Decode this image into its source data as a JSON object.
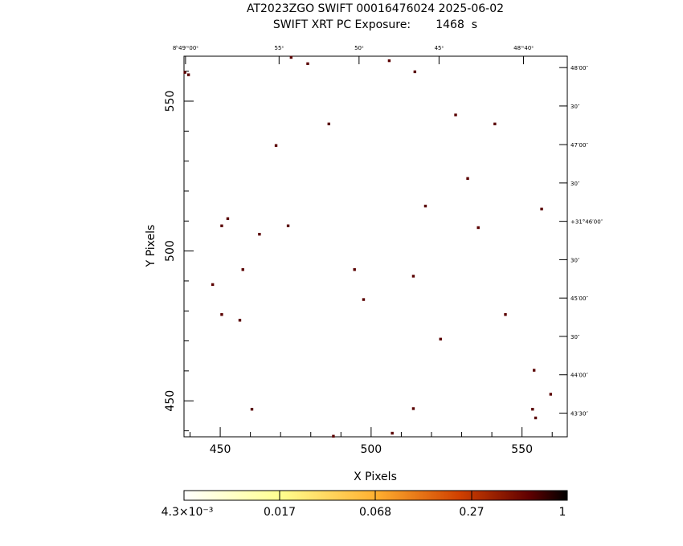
{
  "header": {
    "line1": "AT2023ZGO SWIFT 00016476024 2025-06-02",
    "line2": "SWIFT XRT PC Exposure:       1468  s"
  },
  "chart_data": {
    "type": "scatter",
    "title": "AT2023ZGO SWIFT 00016476024 2025-06-02",
    "subtitle": "SWIFT XRT PC Exposure:       1468  s",
    "xlabel": "X Pixels",
    "ylabel": "Y Pixels",
    "xlim": [
      438,
      565
    ],
    "ylim": [
      438,
      565
    ],
    "x_ticks": [
      450,
      500,
      550
    ],
    "y_ticks": [
      450,
      500,
      550
    ],
    "ra_ticks": [
      {
        "label": "8ʰ49ᵐ00ˢ",
        "x": 438.5
      },
      {
        "label": "55ˢ",
        "x": 469.5
      },
      {
        "label": "50ˢ",
        "x": 496.0
      },
      {
        "label": "45ˢ",
        "x": 522.5
      },
      {
        "label": "48ᵐ40ˢ",
        "x": 550.5
      }
    ],
    "dec_ticks": [
      {
        "label": "48′00″",
        "y": 561.2
      },
      {
        "label": "30″",
        "y": 548.4
      },
      {
        "label": "47′00″",
        "y": 535.5
      },
      {
        "label": "30″",
        "y": 522.7
      },
      {
        "label": "+31°46′00″",
        "y": 509.9
      },
      {
        "label": "30″",
        "y": 497.1
      },
      {
        "label": "45′00″",
        "y": 484.3
      },
      {
        "label": "30″",
        "y": 471.5
      },
      {
        "label": "44′00″",
        "y": 458.7
      },
      {
        "label": "43′30″",
        "y": 445.9
      }
    ],
    "points": [
      {
        "x": 438.3,
        "y": 559.6
      },
      {
        "x": 439.5,
        "y": 558.8
      },
      {
        "x": 473.5,
        "y": 564.6
      },
      {
        "x": 479.0,
        "y": 562.5
      },
      {
        "x": 506.0,
        "y": 563.5
      },
      {
        "x": 514.5,
        "y": 559.8
      },
      {
        "x": 486.0,
        "y": 542.4
      },
      {
        "x": 528.0,
        "y": 545.4
      },
      {
        "x": 541.0,
        "y": 542.4
      },
      {
        "x": 468.5,
        "y": 535.2
      },
      {
        "x": 532.0,
        "y": 524.2
      },
      {
        "x": 518.0,
        "y": 515.0
      },
      {
        "x": 556.5,
        "y": 514.0
      },
      {
        "x": 452.5,
        "y": 510.8
      },
      {
        "x": 450.5,
        "y": 508.4
      },
      {
        "x": 472.5,
        "y": 508.4
      },
      {
        "x": 535.5,
        "y": 507.8
      },
      {
        "x": 463.0,
        "y": 505.6
      },
      {
        "x": 457.5,
        "y": 493.8
      },
      {
        "x": 494.5,
        "y": 493.8
      },
      {
        "x": 514.0,
        "y": 491.6
      },
      {
        "x": 447.5,
        "y": 488.8
      },
      {
        "x": 497.5,
        "y": 483.8
      },
      {
        "x": 450.5,
        "y": 478.8
      },
      {
        "x": 544.5,
        "y": 478.8
      },
      {
        "x": 456.5,
        "y": 476.9
      },
      {
        "x": 523.0,
        "y": 470.6
      },
      {
        "x": 554.0,
        "y": 460.2
      },
      {
        "x": 559.5,
        "y": 452.2
      },
      {
        "x": 460.5,
        "y": 447.2
      },
      {
        "x": 514.0,
        "y": 447.4
      },
      {
        "x": 553.5,
        "y": 447.2
      },
      {
        "x": 554.5,
        "y": 444.3
      },
      {
        "x": 507.0,
        "y": 439.2
      },
      {
        "x": 487.5,
        "y": 438.2
      }
    ],
    "point_color": "#5a0000",
    "colorbar": {
      "scale": "log",
      "tick_labels": [
        "4.3×10⁻³",
        "0.017",
        "0.068",
        "0.27",
        "1"
      ],
      "colors": [
        "#ffffff",
        "#ffff90",
        "#ffb030",
        "#d04000",
        "#600000",
        "#000000"
      ]
    },
    "grid": false
  }
}
